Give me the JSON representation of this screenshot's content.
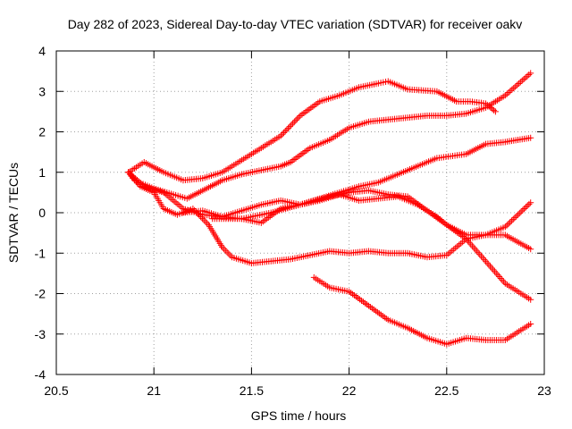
{
  "chart_data": {
    "type": "scatter",
    "title": "Day 282 of 2023, Sidereal Day-to-day VTEC variation (SDTVAR) for receiver oakv",
    "xlabel": "GPS time / hours",
    "ylabel": "SDTVAR / TECUs",
    "xlim": [
      20.5,
      23
    ],
    "ylim": [
      -4,
      4
    ],
    "x_ticks": [
      20.5,
      21,
      21.5,
      22,
      22.5,
      23
    ],
    "y_ticks": [
      -4,
      -3,
      -2,
      -1,
      0,
      1,
      2,
      3,
      4
    ],
    "x_tick_labels": [
      "20.5",
      "21",
      "21.5",
      "22",
      "22.5",
      "23"
    ],
    "y_tick_labels": [
      "-4",
      "-3",
      "-2",
      "-1",
      "0",
      "1",
      "2",
      "3",
      "4"
    ],
    "grid": true,
    "marker": "plus",
    "color": "#ff0000",
    "series": [
      {
        "x": [
          20.87,
          20.9,
          21.0,
          21.1,
          21.17,
          21.25,
          21.35,
          21.45,
          21.55,
          21.65,
          21.7,
          21.8,
          21.9,
          22.0,
          22.1,
          22.2,
          22.3,
          22.4,
          22.5,
          22.6,
          22.7,
          22.8,
          22.93
        ],
        "y": [
          1.0,
          0.8,
          0.6,
          0.45,
          0.35,
          0.55,
          0.8,
          0.95,
          1.05,
          1.15,
          1.25,
          1.6,
          1.8,
          2.1,
          2.25,
          2.3,
          2.35,
          2.4,
          2.4,
          2.45,
          2.6,
          2.9,
          3.45
        ]
      },
      {
        "x": [
          20.87,
          20.95,
          21.05,
          21.15,
          21.25,
          21.35,
          21.45,
          21.55,
          21.65,
          21.75,
          21.85,
          21.95,
          22.05,
          22.15,
          22.2,
          22.3,
          22.45,
          22.55,
          22.62,
          22.7,
          22.75
        ],
        "y": [
          1.0,
          1.25,
          1.0,
          0.8,
          0.85,
          1.0,
          1.3,
          1.6,
          1.9,
          2.4,
          2.75,
          2.9,
          3.1,
          3.2,
          3.25,
          3.05,
          3.0,
          2.75,
          2.75,
          2.7,
          2.5
        ]
      },
      {
        "x": [
          20.87,
          20.95,
          21.05,
          21.15,
          21.25,
          21.35,
          21.45,
          21.55,
          21.65,
          21.75,
          21.85,
          21.95,
          22.05,
          22.15,
          22.3,
          22.45,
          22.6,
          22.7,
          22.8,
          22.93
        ],
        "y": [
          1.0,
          0.65,
          0.5,
          0.1,
          -0.05,
          -0.1,
          -0.15,
          -0.25,
          0.1,
          0.2,
          0.35,
          0.5,
          0.65,
          0.75,
          1.05,
          1.35,
          1.45,
          1.7,
          1.75,
          1.85
        ]
      },
      {
        "x": [
          20.87,
          20.93,
          21.0,
          21.05,
          21.12,
          21.2,
          21.28,
          21.35,
          21.4,
          21.5,
          21.6,
          21.7,
          21.8,
          21.9,
          22.0,
          22.1,
          22.2,
          22.3,
          22.4,
          22.5,
          22.6,
          22.7,
          22.8,
          22.93
        ],
        "y": [
          1.0,
          0.65,
          0.5,
          0.1,
          -0.05,
          0.1,
          -0.3,
          -0.85,
          -1.1,
          -1.25,
          -1.2,
          -1.15,
          -1.05,
          -0.95,
          -1.0,
          -0.95,
          -1.0,
          -1.0,
          -1.1,
          -1.05,
          -0.65,
          -0.55,
          -0.55,
          -0.9
        ]
      },
      {
        "x": [
          21.15,
          21.25,
          21.35,
          21.45,
          21.55,
          21.65,
          21.75,
          21.85,
          21.95,
          22.05,
          22.15,
          22.25,
          22.35,
          22.45,
          22.5,
          22.6,
          22.7,
          22.8,
          22.93
        ],
        "y": [
          0.0,
          0.05,
          -0.1,
          0.05,
          0.2,
          0.3,
          0.2,
          0.3,
          0.45,
          0.3,
          0.35,
          0.4,
          0.2,
          -0.1,
          -0.3,
          -0.65,
          -1.2,
          -1.75,
          -2.15
        ]
      },
      {
        "x": [
          21.3,
          21.45,
          21.6,
          21.75,
          21.9,
          22.0,
          22.1,
          22.2,
          22.3,
          22.4,
          22.5,
          22.6,
          22.7,
          22.8,
          22.93
        ],
        "y": [
          -0.15,
          -0.15,
          0.0,
          0.2,
          0.4,
          0.5,
          0.55,
          0.45,
          0.4,
          0.05,
          -0.3,
          -0.55,
          -0.55,
          -0.35,
          0.25
        ]
      },
      {
        "x": [
          21.82,
          21.9,
          22.0,
          22.1,
          22.2,
          22.3,
          22.4,
          22.5,
          22.6,
          22.7,
          22.8,
          22.93
        ],
        "y": [
          -1.6,
          -1.85,
          -1.95,
          -2.3,
          -2.65,
          -2.85,
          -3.1,
          -3.25,
          -3.1,
          -3.15,
          -3.15,
          -2.75
        ]
      }
    ]
  }
}
